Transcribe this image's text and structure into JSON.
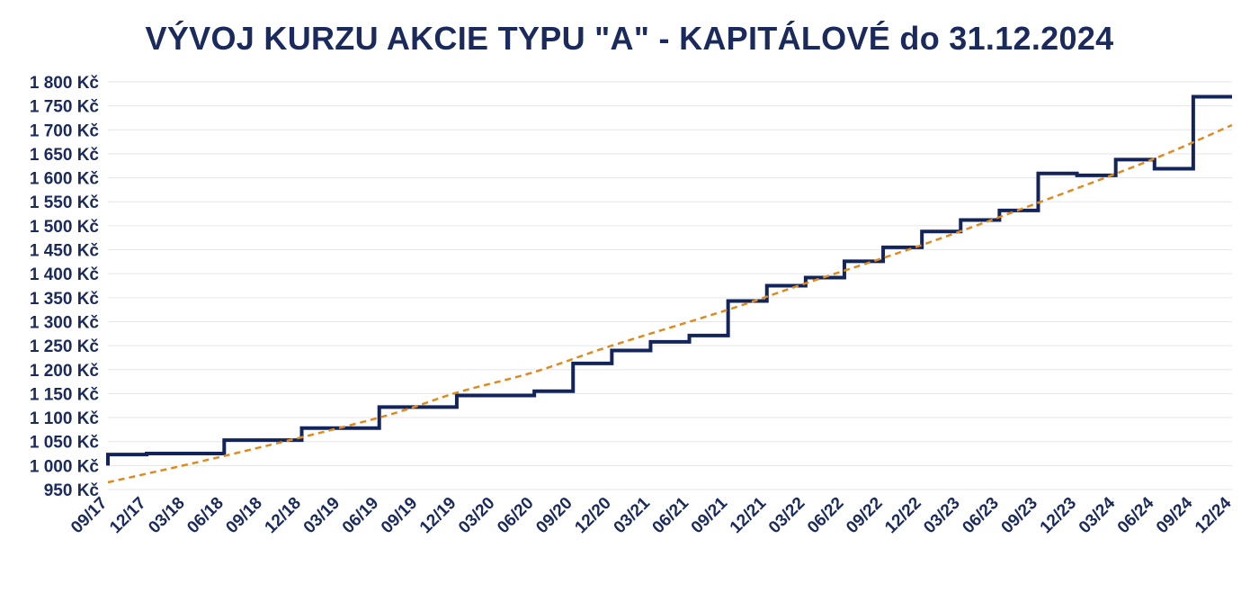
{
  "chart_data": {
    "type": "line",
    "title": "VÝVOJ KURZU AKCIE TYPU \"A\" - KAPITÁLOVÉ do 31.12.2024",
    "xlabel": "",
    "ylabel": "",
    "ylim": [
      950,
      1800
    ],
    "y_tick_values": [
      950,
      1000,
      1050,
      1100,
      1150,
      1200,
      1250,
      1300,
      1350,
      1400,
      1450,
      1500,
      1550,
      1600,
      1650,
      1700,
      1750,
      1800
    ],
    "y_tick_labels": [
      "950 Kč",
      "1 000 Kč",
      "1 050 Kč",
      "1 100 Kč",
      "1 150 Kč",
      "1 200 Kč",
      "1 250 Kč",
      "1 300 Kč",
      "1 350 Kč",
      "1 400 Kč",
      "1 450 Kč",
      "1 500 Kč",
      "1 550 Kč",
      "1 600 Kč",
      "1 650 Kč",
      "1 700 Kč",
      "1 750 Kč",
      "1 800 Kč"
    ],
    "categories": [
      "09/17",
      "12/17",
      "03/18",
      "06/18",
      "09/18",
      "12/18",
      "03/19",
      "06/19",
      "09/19",
      "12/19",
      "03/20",
      "06/20",
      "09/20",
      "12/20",
      "03/21",
      "06/21",
      "09/21",
      "12/21",
      "03/22",
      "06/22",
      "09/22",
      "12/22",
      "03/23",
      "06/23",
      "09/23",
      "12/23",
      "03/24",
      "06/24",
      "09/24",
      "12/24"
    ],
    "grid": true,
    "series": [
      {
        "name": "",
        "color": "#13245b",
        "style": "step",
        "points": [
          {
            "x": "09/17",
            "y": 1000
          },
          {
            "x": "09/17",
            "y": 1023
          },
          {
            "x": "12/17",
            "y": 1025
          },
          {
            "x": "06/18",
            "y": 1053
          },
          {
            "x": "12/18",
            "y": 1078
          },
          {
            "x": "06/19",
            "y": 1122
          },
          {
            "x": "12/19",
            "y": 1146
          },
          {
            "x": "06/20",
            "y": 1155
          },
          {
            "x": "09/20",
            "y": 1213
          },
          {
            "x": "12/20",
            "y": 1240
          },
          {
            "x": "03/21",
            "y": 1258
          },
          {
            "x": "06/21",
            "y": 1271
          },
          {
            "x": "09/21",
            "y": 1343
          },
          {
            "x": "12/21",
            "y": 1375
          },
          {
            "x": "03/22",
            "y": 1392
          },
          {
            "x": "06/22",
            "y": 1426
          },
          {
            "x": "09/22",
            "y": 1455
          },
          {
            "x": "12/22",
            "y": 1488
          },
          {
            "x": "03/23",
            "y": 1512
          },
          {
            "x": "06/23",
            "y": 1532
          },
          {
            "x": "09/23",
            "y": 1609
          },
          {
            "x": "12/23",
            "y": 1605
          },
          {
            "x": "03/24",
            "y": 1638
          },
          {
            "x": "06/24",
            "y": 1619
          },
          {
            "x": "09/24",
            "y": 1769
          },
          {
            "x": "12/24",
            "y": 1769
          }
        ]
      },
      {
        "name": "",
        "color": "#e08a1e",
        "style": "dashed-trend",
        "points": [
          {
            "x": "09/17",
            "y": 965
          },
          {
            "x": "06/18",
            "y": 1020
          },
          {
            "x": "06/19",
            "y": 1100
          },
          {
            "x": "12/19",
            "y": 1152
          },
          {
            "x": "06/20",
            "y": 1195
          },
          {
            "x": "12/20",
            "y": 1250
          },
          {
            "x": "09/21",
            "y": 1325
          },
          {
            "x": "03/22",
            "y": 1380
          },
          {
            "x": "12/22",
            "y": 1460
          },
          {
            "x": "09/23",
            "y": 1548
          },
          {
            "x": "06/24",
            "y": 1640
          },
          {
            "x": "12/24",
            "y": 1710
          }
        ]
      }
    ]
  }
}
